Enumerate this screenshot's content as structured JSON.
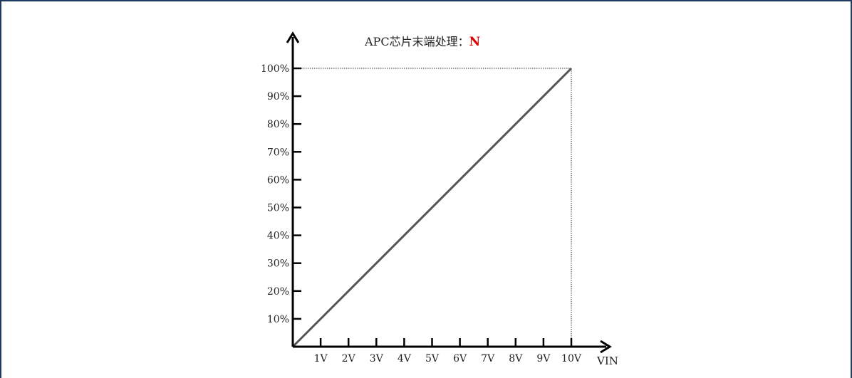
{
  "chart_data": {
    "type": "line",
    "title_prefix": "APC芯片末端处理：",
    "title_value": "N",
    "title_value_color": "#e00000",
    "xlabel": "VIN",
    "ylabel": "",
    "x_tick_labels": [
      "1V",
      "2V",
      "3V",
      "4V",
      "5V",
      "6V",
      "7V",
      "8V",
      "9V",
      "10V"
    ],
    "y_tick_labels": [
      "10%",
      "20%",
      "30%",
      "40%",
      "50%",
      "60%",
      "70%",
      "80%",
      "90%",
      "100%"
    ],
    "xlim": [
      0,
      10
    ],
    "ylim": [
      0,
      100
    ],
    "grid": false,
    "series": [
      {
        "x": [
          0,
          10
        ],
        "y": [
          0,
          100
        ],
        "color": "#555555"
      }
    ],
    "reference_lines": {
      "x": 10,
      "y": 100,
      "style": "dotted"
    },
    "colors": {
      "axis": "#000000",
      "frame": "#1f3a5f"
    }
  }
}
